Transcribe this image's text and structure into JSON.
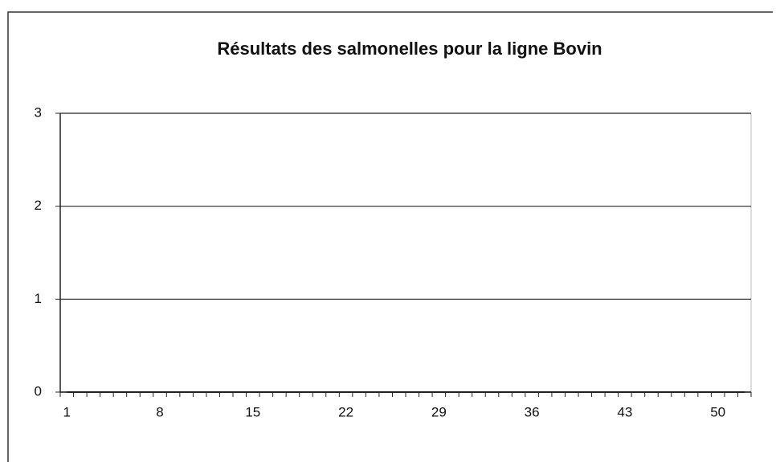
{
  "chart_data": {
    "type": "line",
    "title": "Résultats des salmonelles pour la ligne Bovin",
    "categories": [
      "1",
      null,
      null,
      null,
      null,
      null,
      null,
      "8",
      null,
      null,
      null,
      null,
      null,
      null,
      "15",
      null,
      null,
      null,
      null,
      null,
      null,
      "22",
      null,
      null,
      null,
      null,
      null,
      null,
      "29",
      null,
      null,
      null,
      null,
      null,
      null,
      "36",
      null,
      null,
      null,
      null,
      null,
      null,
      "43",
      null,
      null,
      null,
      null,
      null,
      null,
      "50",
      null,
      null
    ],
    "values": [
      0,
      0,
      0,
      0,
      0,
      0,
      0,
      0,
      0,
      0,
      0,
      0,
      0,
      0,
      0,
      0,
      0,
      0,
      0,
      0,
      0,
      0,
      0,
      0,
      0,
      0,
      0,
      0,
      0,
      0,
      0,
      0,
      0,
      0,
      0,
      0,
      0,
      0,
      0,
      0,
      0,
      0,
      0,
      0,
      0,
      0,
      0,
      0,
      0,
      0,
      0,
      0
    ],
    "color": "#222222",
    "ylim": [
      0,
      3
    ],
    "yticks": [
      0,
      1,
      2,
      3
    ],
    "grid": true
  }
}
